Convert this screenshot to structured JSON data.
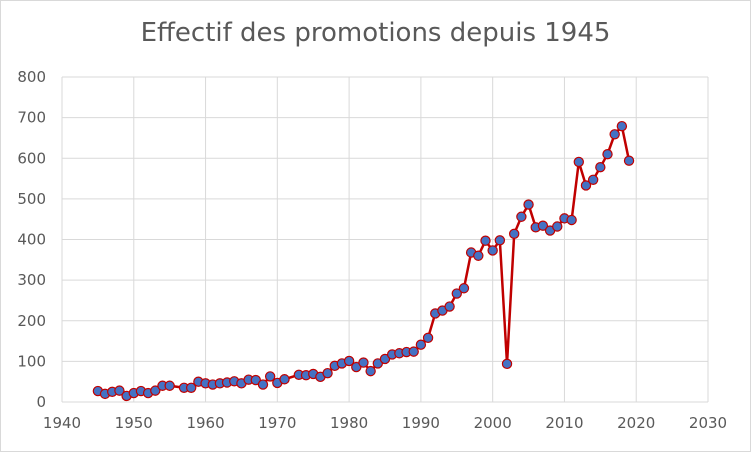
{
  "chart_data": {
    "type": "line",
    "title": "Effectif des promotions depuis 1945",
    "xlabel": "",
    "ylabel": "",
    "xlim": [
      1940,
      2030
    ],
    "ylim": [
      0,
      800
    ],
    "x_ticks": [
      1940,
      1950,
      1960,
      1970,
      1980,
      1990,
      2000,
      2010,
      2020,
      2030
    ],
    "y_ticks": [
      0,
      100,
      200,
      300,
      400,
      500,
      600,
      700,
      800
    ],
    "grid": true,
    "legend": "none",
    "series": [
      {
        "color": "#c00000",
        "marker_color": "#4472c4",
        "x": [
          1945,
          1946,
          1947,
          1948,
          1949,
          1950,
          1951,
          1952,
          1953,
          1954,
          1955,
          1957,
          1958,
          1959,
          1960,
          1961,
          1962,
          1963,
          1964,
          1965,
          1966,
          1967,
          1968,
          1969,
          1970,
          1971,
          1973,
          1974,
          1975,
          1976,
          1977,
          1978,
          1979,
          1980,
          1981,
          1982,
          1983,
          1984,
          1985,
          1986,
          1987,
          1988,
          1989,
          1990,
          1991,
          1992,
          1993,
          1994,
          1995,
          1996,
          1997,
          1998,
          1999,
          2000,
          2001,
          2002,
          2003,
          2004,
          2005,
          2006,
          2007,
          2008,
          2009,
          2010,
          2011,
          2012,
          2013,
          2014,
          2015,
          2016,
          2017,
          2018,
          2019
        ],
        "y": [
          27,
          20,
          25,
          28,
          15,
          22,
          27,
          22,
          28,
          40,
          40,
          35,
          35,
          50,
          46,
          43,
          46,
          48,
          51,
          46,
          55,
          54,
          43,
          63,
          47,
          56,
          67,
          66,
          69,
          62,
          71,
          89,
          95,
          101,
          86,
          97,
          76,
          95,
          106,
          117,
          120,
          123,
          124,
          141,
          158,
          218,
          225,
          235,
          267,
          280,
          368,
          360,
          397,
          373,
          398,
          94,
          414,
          456,
          486,
          430,
          434,
          422,
          432,
          452,
          448,
          591,
          533,
          547,
          578,
          610,
          659,
          679,
          594
        ]
      }
    ]
  }
}
